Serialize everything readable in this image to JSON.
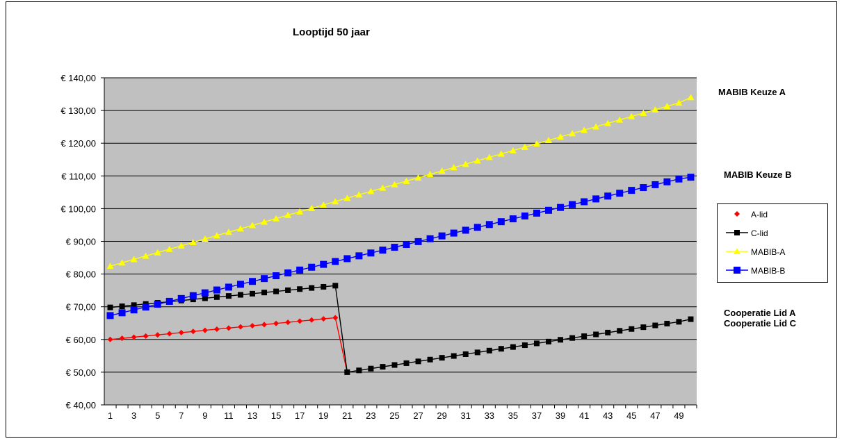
{
  "chart_data": {
    "type": "line",
    "title": "Looptijd 50 jaar",
    "xlabel": "",
    "ylabel": "",
    "ylim": [
      40,
      140
    ],
    "y_ticks": [
      "€ 40,00",
      "€ 50,00",
      "€ 60,00",
      "€ 70,00",
      "€ 80,00",
      "€ 90,00",
      "€ 100,00",
      "€ 110,00",
      "€ 120,00",
      "€ 130,00",
      "€ 140,00"
    ],
    "x_tick_labels": [
      "1",
      "3",
      "5",
      "7",
      "9",
      "11",
      "13",
      "15",
      "17",
      "19",
      "21",
      "23",
      "25",
      "27",
      "29",
      "31",
      "33",
      "35",
      "37",
      "39",
      "41",
      "43",
      "45",
      "47",
      "49"
    ],
    "x": [
      1,
      2,
      3,
      4,
      5,
      6,
      7,
      8,
      9,
      10,
      11,
      12,
      13,
      14,
      15,
      16,
      17,
      18,
      19,
      20,
      21,
      22,
      23,
      24,
      25,
      26,
      27,
      28,
      29,
      30,
      31,
      32,
      33,
      34,
      35,
      36,
      37,
      38,
      39,
      40,
      41,
      42,
      43,
      44,
      45,
      46,
      47,
      48,
      49,
      50
    ],
    "grid": true,
    "plot_background": "#c0c0c0",
    "legend_position": "right",
    "series": [
      {
        "name": "A-lid",
        "color": "#ff0000",
        "marker": "diamond",
        "x": [
          1,
          2,
          3,
          4,
          5,
          6,
          7,
          8,
          9,
          10,
          11,
          12,
          13,
          14,
          15,
          16,
          17,
          18,
          19,
          20,
          21
        ],
        "values": [
          60.0,
          60.35,
          60.7,
          61.05,
          61.4,
          61.75,
          62.1,
          62.45,
          62.8,
          63.15,
          63.5,
          63.85,
          64.2,
          64.55,
          64.9,
          65.25,
          65.6,
          65.95,
          66.3,
          66.65,
          50.0
        ]
      },
      {
        "name": "C-lid",
        "color": "#000000",
        "marker": "square",
        "x": [
          1,
          2,
          3,
          4,
          5,
          6,
          7,
          8,
          9,
          10,
          11,
          12,
          13,
          14,
          15,
          16,
          17,
          18,
          19,
          20,
          21,
          22,
          23,
          24,
          25,
          26,
          27,
          28,
          29,
          30,
          31,
          32,
          33,
          34,
          35,
          36,
          37,
          38,
          39,
          40,
          41,
          42,
          43,
          44,
          45,
          46,
          47,
          48,
          49,
          50
        ],
        "values": [
          69.8,
          70.15,
          70.5,
          70.85,
          71.2,
          71.55,
          71.9,
          72.25,
          72.6,
          72.95,
          73.3,
          73.65,
          74.0,
          74.35,
          74.7,
          75.05,
          75.4,
          75.75,
          76.1,
          76.45,
          50.0,
          50.55,
          51.1,
          51.65,
          52.2,
          52.75,
          53.3,
          53.85,
          54.4,
          54.95,
          55.5,
          56.05,
          56.6,
          57.15,
          57.7,
          58.25,
          58.8,
          59.35,
          59.9,
          60.45,
          61.0,
          61.55,
          62.1,
          62.65,
          63.2,
          63.75,
          64.3,
          64.85,
          65.4,
          66.2
        ]
      },
      {
        "name": "MABIB-A",
        "color": "#ffff00",
        "marker": "triangle",
        "x": [
          1,
          2,
          3,
          4,
          5,
          6,
          7,
          8,
          9,
          10,
          11,
          12,
          13,
          14,
          15,
          16,
          17,
          18,
          19,
          20,
          21,
          22,
          23,
          24,
          25,
          26,
          27,
          28,
          29,
          30,
          31,
          32,
          33,
          34,
          35,
          36,
          37,
          38,
          39,
          40,
          41,
          42,
          43,
          44,
          45,
          46,
          47,
          48,
          49,
          50
        ],
        "values": [
          82.4,
          83.44,
          84.48,
          85.52,
          86.56,
          87.6,
          88.64,
          89.68,
          90.72,
          91.76,
          92.8,
          93.84,
          94.88,
          95.92,
          96.96,
          98.0,
          99.04,
          100.08,
          101.12,
          102.16,
          103.2,
          104.24,
          105.28,
          106.32,
          107.36,
          108.4,
          109.44,
          110.48,
          111.52,
          112.56,
          113.6,
          114.64,
          115.68,
          116.72,
          117.76,
          118.8,
          119.84,
          120.88,
          121.92,
          122.96,
          124.0,
          125.04,
          126.08,
          127.12,
          128.16,
          129.2,
          130.24,
          131.28,
          132.32,
          134.0
        ]
      },
      {
        "name": "MABIB-B",
        "color": "#0000ff",
        "marker": "square",
        "x": [
          1,
          2,
          3,
          4,
          5,
          6,
          7,
          8,
          9,
          10,
          11,
          12,
          13,
          14,
          15,
          16,
          17,
          18,
          19,
          20,
          21,
          22,
          23,
          24,
          25,
          26,
          27,
          28,
          29,
          30,
          31,
          32,
          33,
          34,
          35,
          36,
          37,
          38,
          39,
          40,
          41,
          42,
          43,
          44,
          45,
          46,
          47,
          48,
          49,
          50
        ],
        "values": [
          67.3,
          68.17,
          69.04,
          69.91,
          70.78,
          71.65,
          72.52,
          73.39,
          74.26,
          75.13,
          76.0,
          76.87,
          77.74,
          78.61,
          79.48,
          80.35,
          81.22,
          82.09,
          82.96,
          83.83,
          84.7,
          85.57,
          86.44,
          87.31,
          88.18,
          89.05,
          89.92,
          90.79,
          91.66,
          92.53,
          93.4,
          94.27,
          95.14,
          96.01,
          96.88,
          97.75,
          98.62,
          99.49,
          100.36,
          101.23,
          102.1,
          102.97,
          103.84,
          104.71,
          105.58,
          106.45,
          107.32,
          108.19,
          109.06,
          109.6
        ]
      }
    ],
    "annotations": [
      "MABIB Keuze A",
      "MABIB Keuze B",
      "Cooperatie Lid A",
      "Cooperatie Lid C"
    ]
  },
  "legend": {
    "items": [
      {
        "label": "A-lid",
        "color": "#ff0000",
        "marker": "diamond"
      },
      {
        "label": "C-lid",
        "color": "#000000",
        "marker": "square"
      },
      {
        "label": "MABIB-A",
        "color": "#ffff00",
        "marker": "triangle"
      },
      {
        "label": "MABIB-B",
        "color": "#0000ff",
        "marker": "square"
      }
    ]
  },
  "side_labels": {
    "keuze_a": "MABIB Keuze A",
    "keuze_b": "MABIB Keuze B",
    "coop_a": "Cooperatie Lid A",
    "coop_c": "Cooperatie Lid C"
  }
}
